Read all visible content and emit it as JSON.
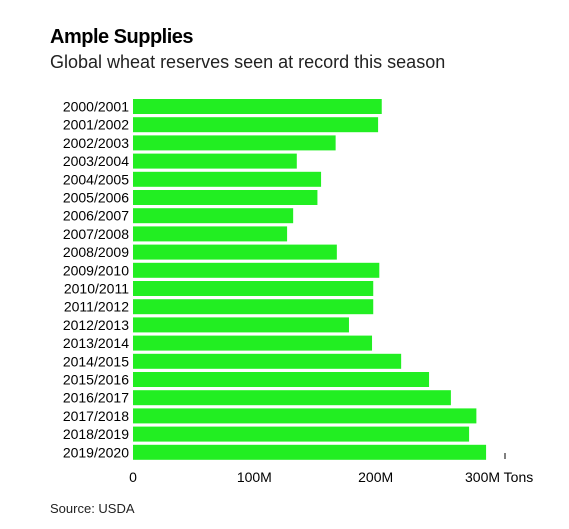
{
  "header": {
    "title": "Ample Supplies",
    "subtitle": "Global wheat reserves seen at record this season"
  },
  "footer": {
    "source": "Source: USDA"
  },
  "colors": {
    "bar": "#22ee22",
    "text": "#000000"
  },
  "chart_data": {
    "type": "bar",
    "orientation": "horizontal",
    "title": "Ample Supplies",
    "subtitle": "Global wheat reserves seen at record this season",
    "categories": [
      "2000/2001",
      "2001/2002",
      "2002/2003",
      "2003/2004",
      "2004/2005",
      "2005/2006",
      "2006/2007",
      "2007/2008",
      "2008/2009",
      "2009/2010",
      "2010/2011",
      "2011/2012",
      "2012/2013",
      "2013/2014",
      "2014/2015",
      "2015/2016",
      "2016/2017",
      "2017/2018",
      "2018/2019",
      "2019/2020"
    ],
    "values": [
      205,
      202,
      167,
      135,
      155,
      152,
      132,
      127,
      168,
      203,
      198,
      198,
      178,
      197,
      221,
      244,
      262,
      283,
      277,
      291
    ],
    "xlim": [
      0,
      300
    ],
    "xticks": [
      {
        "value": 0,
        "label": "0"
      },
      {
        "value": 100,
        "label": "100M"
      },
      {
        "value": 200,
        "label": "200M"
      },
      {
        "value": 300,
        "label": "300M Tons"
      }
    ],
    "grid": false,
    "legend": "none",
    "source": "Source: USDA"
  }
}
